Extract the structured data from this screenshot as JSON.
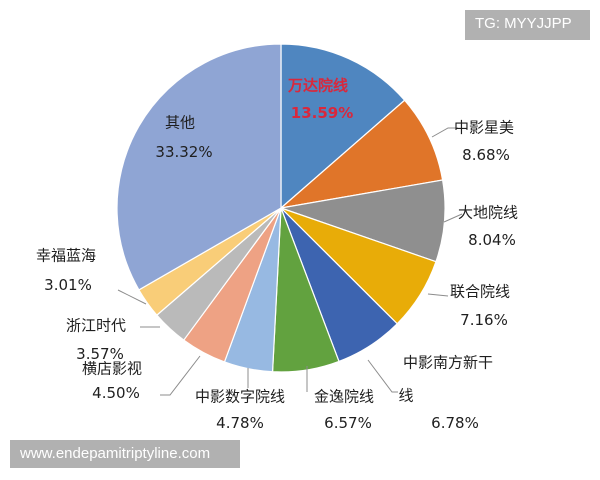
{
  "chart_data": {
    "type": "pie",
    "start_angle": "12 o'clock",
    "direction": "clockwise",
    "slices": [
      {
        "label": "万达院线",
        "value": 13.59,
        "value_label": "13.59%",
        "color": "#4f86c0",
        "highlight": true
      },
      {
        "label": "中影星美",
        "value": 8.68,
        "value_label": "8.68%",
        "color": "#e07529"
      },
      {
        "label": "大地院线",
        "value": 8.04,
        "value_label": "8.04%",
        "color": "#8f8f8f"
      },
      {
        "label": "联合院线",
        "value": 7.16,
        "value_label": "7.16%",
        "color": "#e8ac08"
      },
      {
        "label": "中影南方新干",
        "label_line2": "线",
        "value": 6.78,
        "value_label": "6.78%",
        "color": "#3d64b0"
      },
      {
        "label": "金逸院线",
        "value": 6.57,
        "value_label": "6.57%",
        "color": "#62a23f"
      },
      {
        "label": "中影数字院线",
        "value": 4.78,
        "value_label": "4.78%",
        "color": "#97b9e2"
      },
      {
        "label": "横店影视",
        "value": 4.5,
        "value_label": "4.50%",
        "color": "#eea284"
      },
      {
        "label": "浙江时代",
        "value": 3.57,
        "value_label": "3.57%",
        "color": "#bababa"
      },
      {
        "label": "幸福蓝海",
        "value": 3.01,
        "value_label": "3.01%",
        "color": "#f9cd78"
      },
      {
        "label": "其他",
        "value": 33.32,
        "value_label": "33.32%",
        "color": "#8fa5d4"
      }
    ],
    "highlight_color": "#d9283c"
  },
  "watermarks": {
    "top": "TG: MYYJJPP",
    "bottom": "www.endepamitriptyline.com"
  }
}
